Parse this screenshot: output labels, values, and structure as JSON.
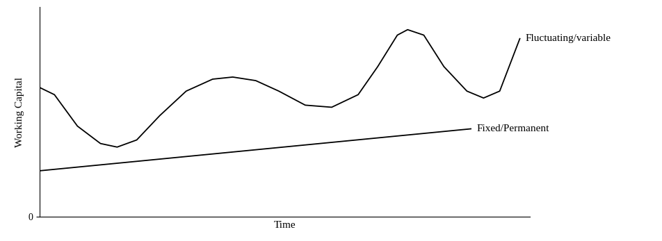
{
  "chart_data": {
    "type": "line",
    "x_label": "Time",
    "y_label": "Working Capital",
    "xlim": [
      0,
      100
    ],
    "ylim": [
      0,
      100
    ],
    "xticks": [],
    "yticks": [
      0
    ],
    "tick_labels": "y",
    "grid": false,
    "series": [
      {
        "name": "Fluctuating/variable",
        "color": "#000000",
        "line_style": "solid",
        "x": [
          0,
          3,
          7.7,
          12.4,
          15.8,
          19.8,
          24.5,
          29.9,
          35.3,
          39.4,
          44.1,
          48.8,
          54.2,
          59.6,
          65,
          69,
          73,
          75.1,
          78.4,
          82.5,
          87.2,
          90.6,
          93.9,
          98
        ],
        "values": [
          61.7,
          58.3,
          43.3,
          35,
          33.3,
          36.7,
          48.3,
          60,
          65.7,
          66.7,
          65,
          60,
          53.3,
          52.3,
          58.3,
          71.7,
          86.7,
          89.3,
          86.7,
          71.7,
          60,
          56.7,
          60,
          85
        ]
      },
      {
        "name": "Fixed/Permanent",
        "color": "#000000",
        "line_style": "solid",
        "x": [
          0,
          88
        ],
        "values": [
          22,
          42
        ]
      }
    ]
  }
}
